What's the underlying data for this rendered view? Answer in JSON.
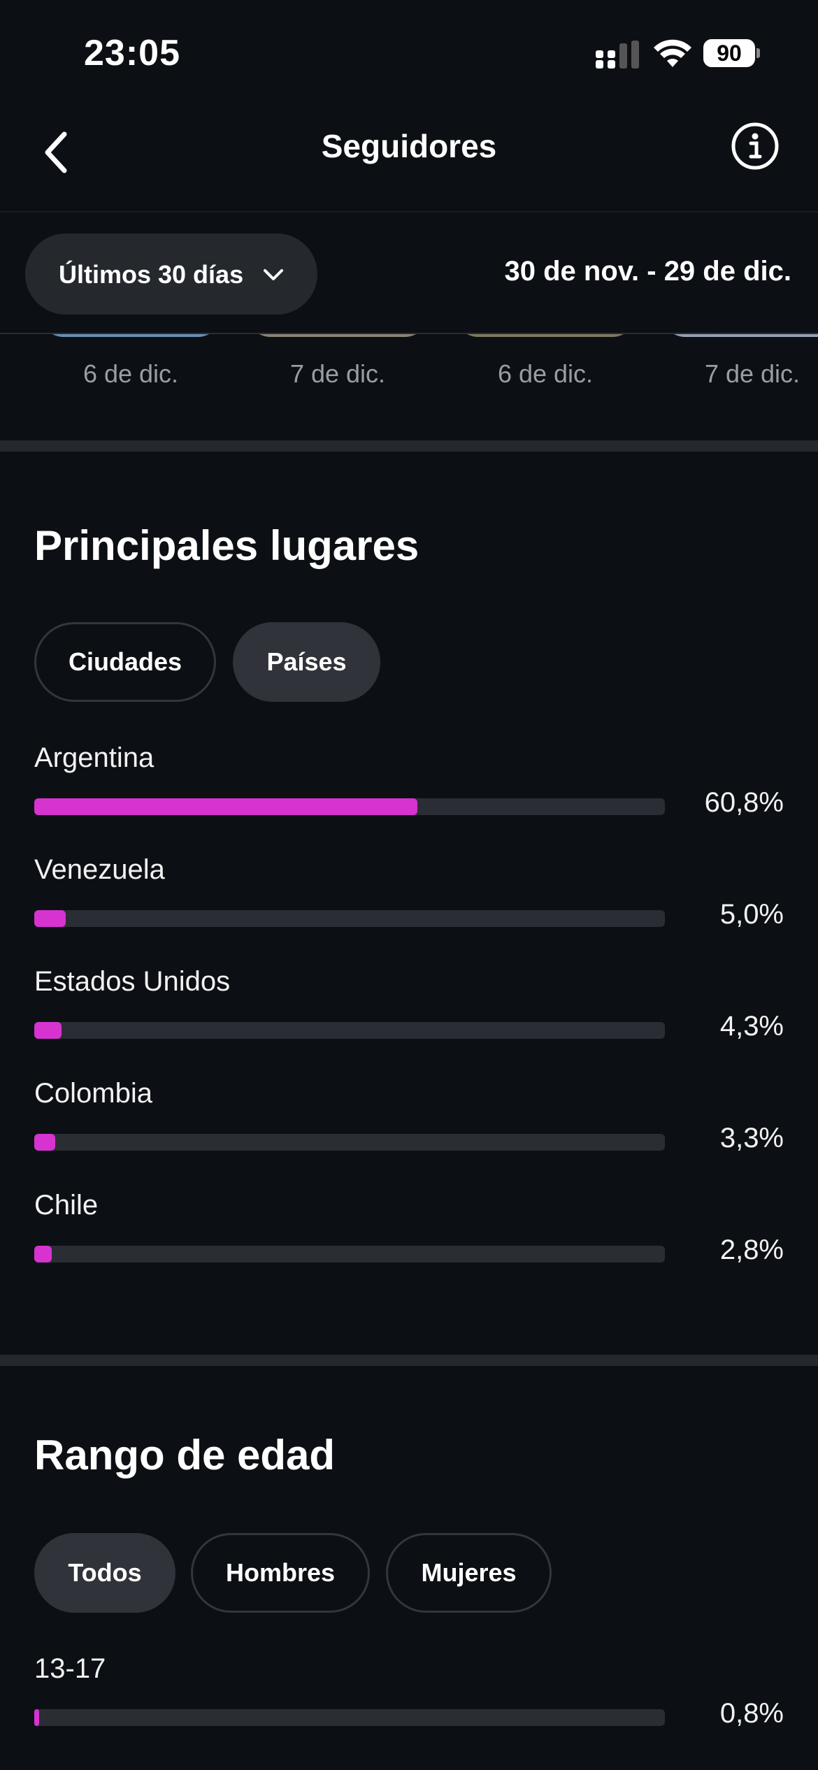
{
  "status_bar": {
    "time": "23:05",
    "battery": "90"
  },
  "nav": {
    "title": "Seguidores"
  },
  "filter": {
    "range_label": "Últimos 30 días",
    "date_range": "30 de nov. - 29 de dic."
  },
  "thumbnails": [
    {
      "date": "6 de dic."
    },
    {
      "date": "7 de dic."
    },
    {
      "date": "6 de dic."
    },
    {
      "date": "7 de dic."
    }
  ],
  "top_places": {
    "title": "Principales lugares",
    "tabs": [
      {
        "label": "Ciudades",
        "selected": false
      },
      {
        "label": "Países",
        "selected": true
      }
    ],
    "items": [
      {
        "label": "Argentina",
        "value": "60,8%",
        "percent": 60.8
      },
      {
        "label": "Venezuela",
        "value": "5,0%",
        "percent": 5.0
      },
      {
        "label": "Estados Unidos",
        "value": "4,3%",
        "percent": 4.3
      },
      {
        "label": "Colombia",
        "value": "3,3%",
        "percent": 3.3
      },
      {
        "label": "Chile",
        "value": "2,8%",
        "percent": 2.8
      }
    ]
  },
  "age_range": {
    "title": "Rango de edad",
    "tabs": [
      {
        "label": "Todos",
        "selected": true
      },
      {
        "label": "Hombres",
        "selected": false
      },
      {
        "label": "Mujeres",
        "selected": false
      }
    ],
    "items": [
      {
        "label": "13-17",
        "value": "0,8%",
        "percent": 0.8
      }
    ]
  },
  "colors": {
    "accent": "#d633d1",
    "background": "#0c1014",
    "track": "#2a2d33"
  }
}
